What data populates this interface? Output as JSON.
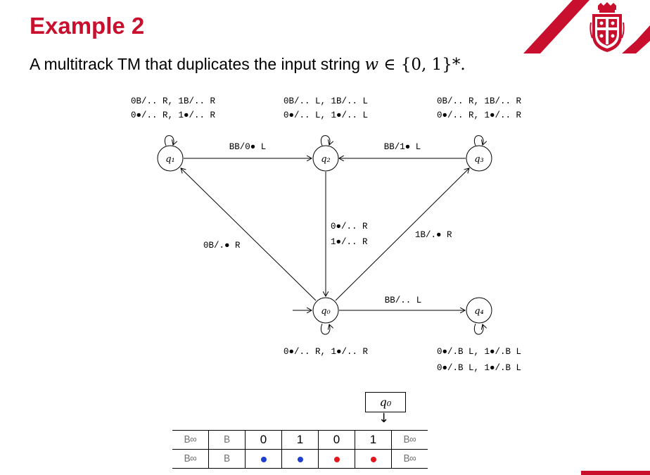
{
  "slide": {
    "title": "Example 2",
    "subtitle_prefix": "A multitrack TM that duplicates the input string ",
    "subtitle_math_w": "w",
    "subtitle_math_rest": " ∈ {0, 1}*."
  },
  "colors": {
    "accent": "#c8102e",
    "blue": "#1f3fd1",
    "red": "#e3171b",
    "gray": "#777777"
  },
  "states": [
    {
      "id": "q1",
      "label": "q₁"
    },
    {
      "id": "q2",
      "label": "q₂"
    },
    {
      "id": "q3",
      "label": "q₃"
    },
    {
      "id": "q0",
      "label": "q₀"
    },
    {
      "id": "q4",
      "label": "q₄"
    }
  ],
  "transitions": {
    "q1_loop": [
      "0B/.. R,  1B/.. R",
      "0●/.. R,  1●/.. R"
    ],
    "q2_loop": [
      "0B/.. L,  1B/.. L",
      "0●/.. L,  1●/.. L"
    ],
    "q3_loop": [
      "0B/.. R,  1B/.. R",
      "0●/.. R,  1●/.. R"
    ],
    "q1_q2": "BB/0● L",
    "q3_q2": "BB/1● L",
    "q2_q0": [
      "0●/.. R",
      "1●/.. R"
    ],
    "q0_q1": "0B/.● R",
    "q0_q3": "1B/.● R",
    "q0_q4": "BB/.. L",
    "q0_loop": "0●/.. R,  1●/.. R",
    "q4_loop": [
      "0●/.B L,  1●/.B L",
      "0●/.B L,  1●/.B L"
    ]
  },
  "tape": {
    "head_state": "q₀",
    "head_arrow": "↓",
    "track1": [
      "B∞",
      "B",
      "0",
      "1",
      "0",
      "1",
      "B∞"
    ],
    "track2": [
      "B∞",
      "B",
      "blue",
      "blue",
      "red",
      "red",
      "B∞"
    ]
  }
}
